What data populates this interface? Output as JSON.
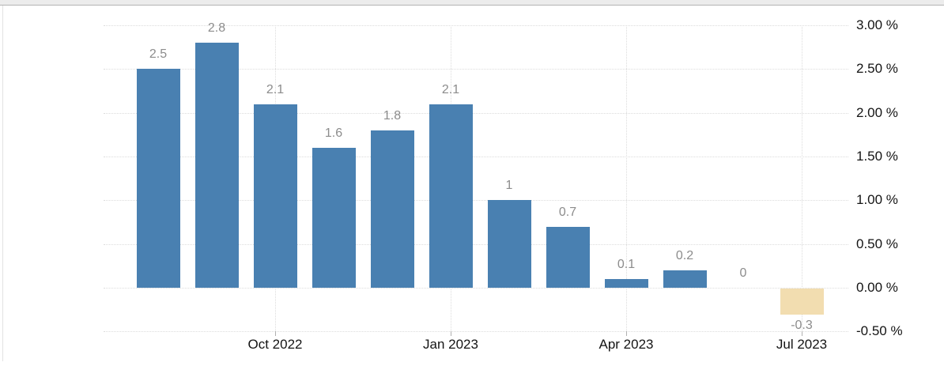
{
  "chart_data": {
    "type": "bar",
    "title": "",
    "unit": "%",
    "values": [
      2.5,
      2.8,
      2.1,
      1.6,
      1.8,
      2.1,
      1,
      0.7,
      0.1,
      0.2,
      0,
      -0.3
    ],
    "value_labels": [
      "2.5",
      "2.8",
      "2.1",
      "1.6",
      "1.8",
      "2.1",
      "1",
      "0.7",
      "0.1",
      "0.2",
      "0",
      "-0.3"
    ],
    "x_ticks": [
      {
        "label": "Oct 2022",
        "bar_index": 2
      },
      {
        "label": "Jan 2023",
        "bar_index": 5
      },
      {
        "label": "Apr 2023",
        "bar_index": 8
      },
      {
        "label": "Jul 2023",
        "bar_index": 11
      }
    ],
    "y_ticks": [
      {
        "value": 3,
        "label": "3.00 %"
      },
      {
        "value": 2.5,
        "label": "2.50 %"
      },
      {
        "value": 2,
        "label": "2.00 %"
      },
      {
        "value": 1.5,
        "label": "1.50 %"
      },
      {
        "value": 1,
        "label": "1.00 %"
      },
      {
        "value": 0.5,
        "label": "0.50 %"
      },
      {
        "value": 0,
        "label": "0.00 %"
      },
      {
        "value": -0.5,
        "label": "-0.50 %"
      }
    ],
    "ylim": [
      -0.5,
      3.0
    ],
    "grid": "dotted",
    "legend": "none",
    "xlabel": "",
    "ylabel": "",
    "colors": {
      "bar_positive": "#4980b1",
      "bar_negative": "#f2ddb0",
      "value_label": "#8c8c8c",
      "axis_label": "#141414",
      "gridline": "#dcdcdc",
      "tick": "#b0b0b0",
      "top_strip": "#ececec",
      "top_strip_border": "#b3b3b3"
    }
  }
}
